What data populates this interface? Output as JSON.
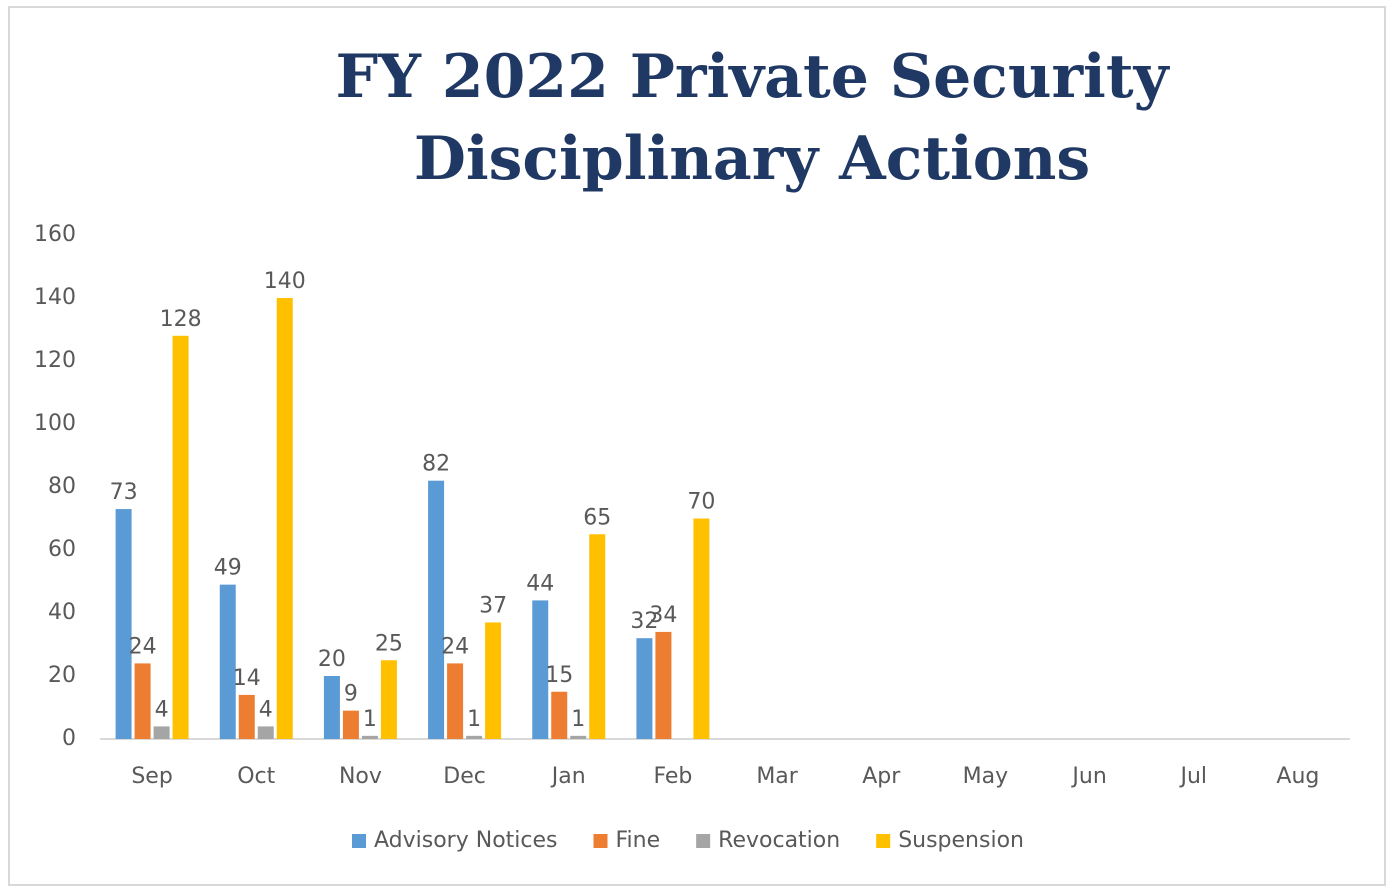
{
  "chart_data": {
    "type": "bar",
    "title": "FY 2022 Private Security Disciplinary Actions",
    "categories": [
      "Sep",
      "Oct",
      "Nov",
      "Dec",
      "Jan",
      "Feb",
      "Mar",
      "Apr",
      "May",
      "Jun",
      "Jul",
      "Aug"
    ],
    "series": [
      {
        "name": "Advisory Notices",
        "color": "#5b9bd5",
        "values": [
          73,
          49,
          20,
          82,
          44,
          32,
          null,
          null,
          null,
          null,
          null,
          null
        ]
      },
      {
        "name": "Fine",
        "color": "#ed7d31",
        "values": [
          24,
          14,
          9,
          24,
          15,
          34,
          null,
          null,
          null,
          null,
          null,
          null
        ]
      },
      {
        "name": "Revocation",
        "color": "#a5a5a5",
        "values": [
          4,
          4,
          1,
          1,
          1,
          null,
          null,
          null,
          null,
          null,
          null,
          null
        ]
      },
      {
        "name": "Suspension",
        "color": "#ffc000",
        "values": [
          128,
          140,
          25,
          37,
          65,
          70,
          null,
          null,
          null,
          null,
          null,
          null
        ]
      }
    ],
    "ylim": [
      0,
      160
    ],
    "yticks": [
      0,
      20,
      40,
      60,
      80,
      100,
      120,
      140,
      160
    ],
    "grid": false,
    "legend": "bottom"
  }
}
